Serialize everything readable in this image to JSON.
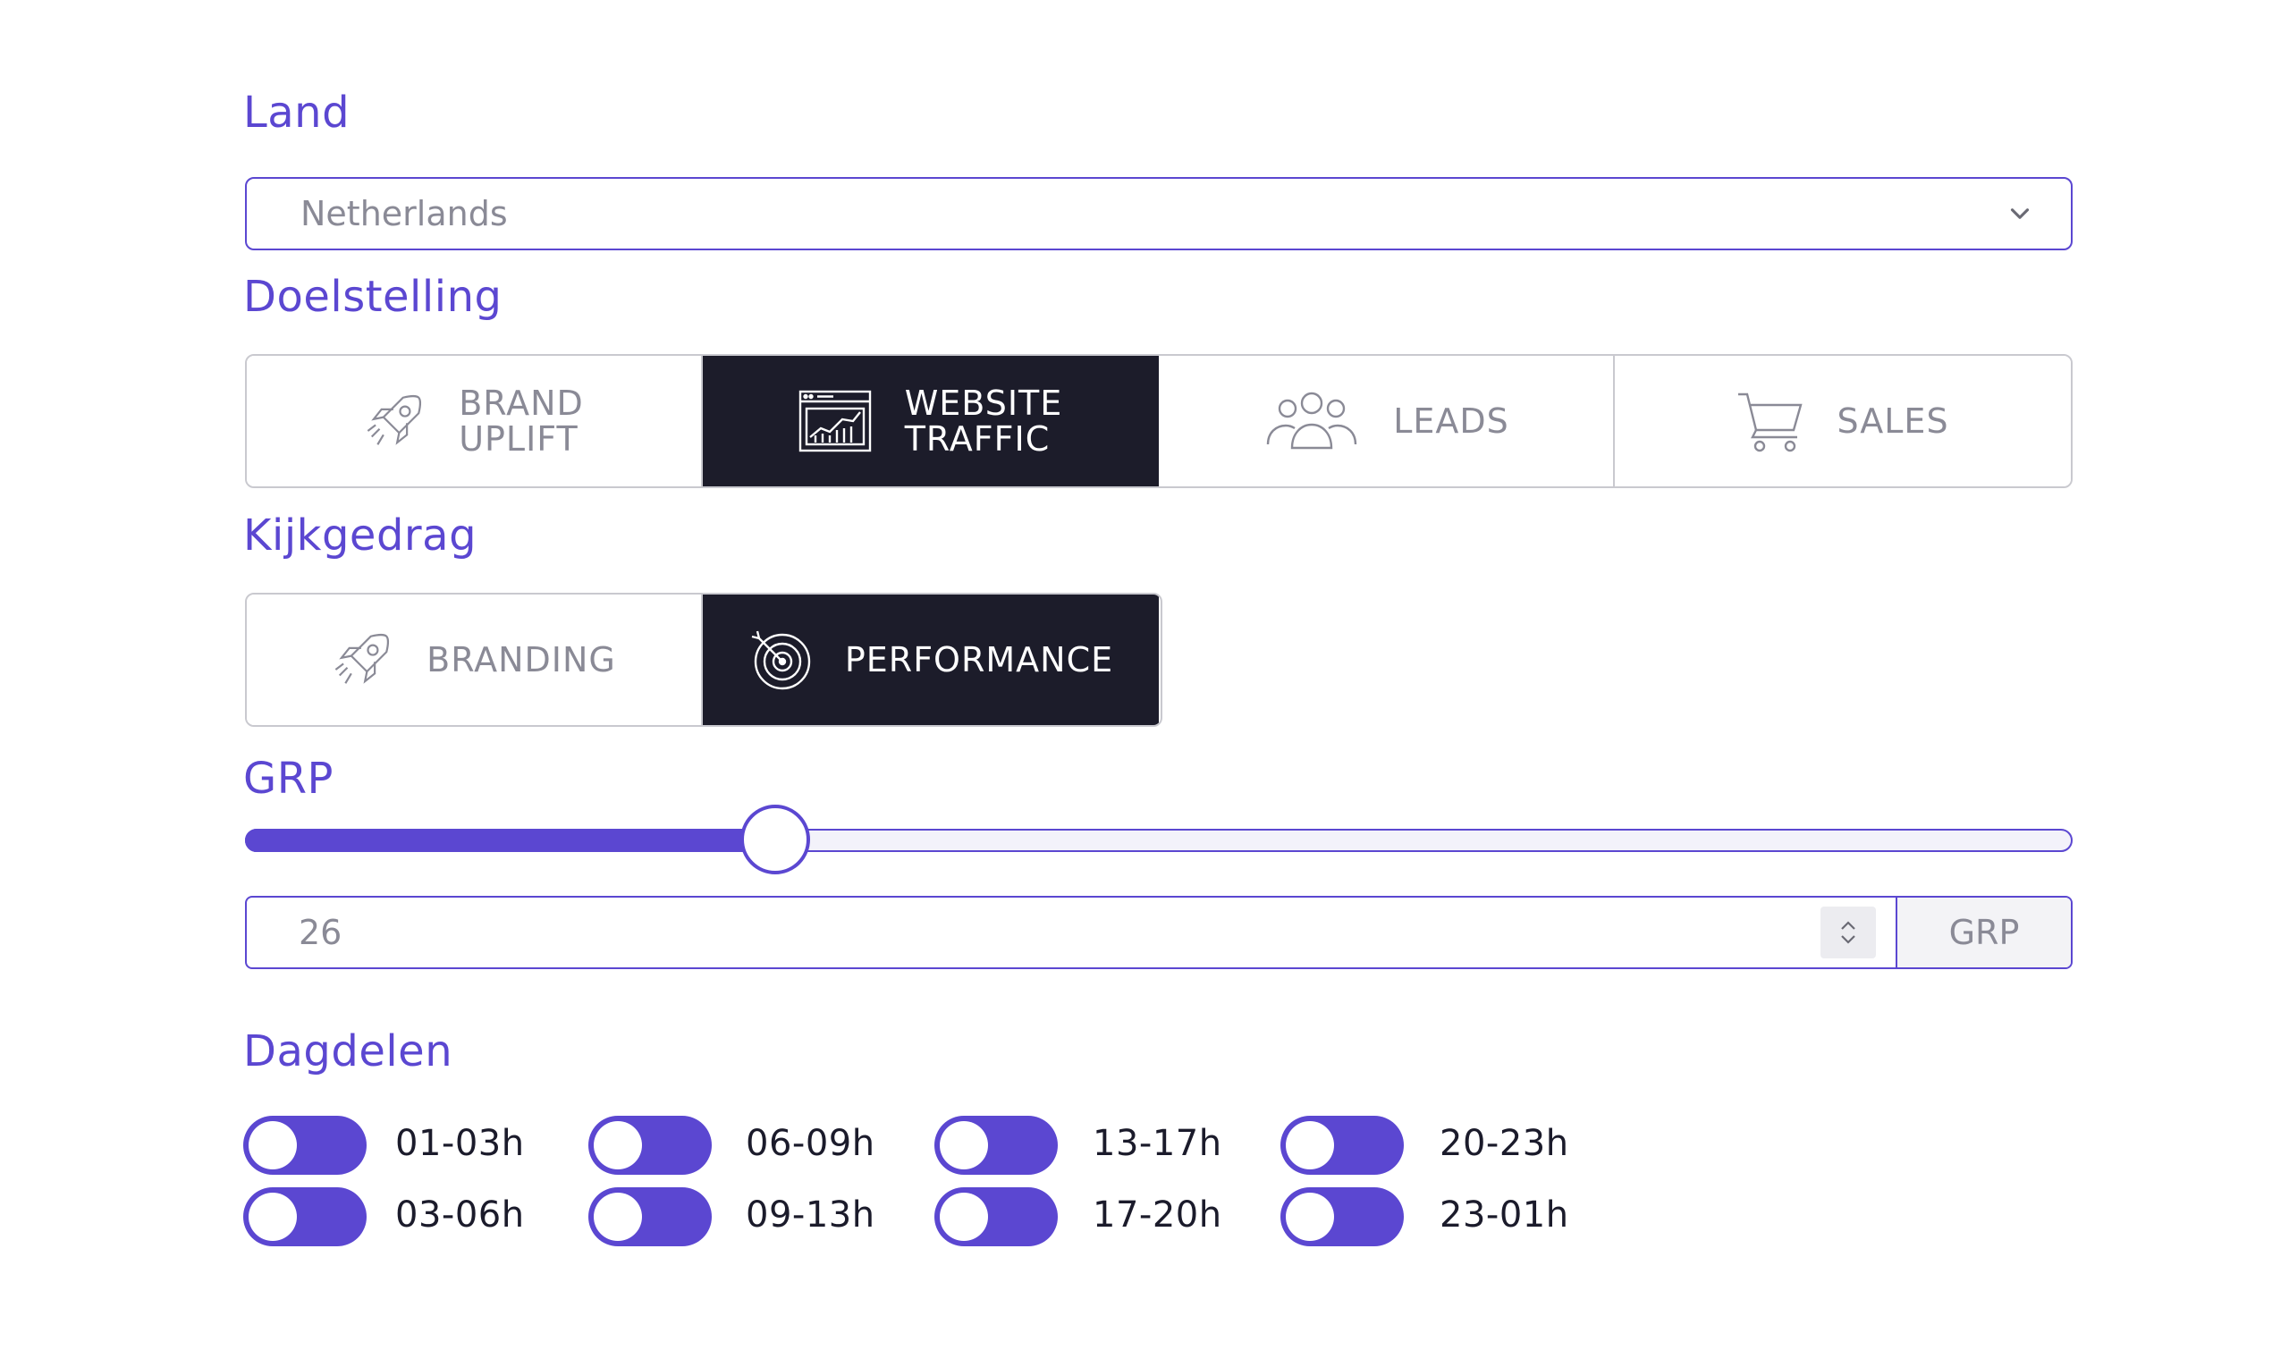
{
  "land": {
    "label": "Land",
    "selected": "Netherlands",
    "chevron_icon": "chevron-down-icon"
  },
  "doelstelling": {
    "label": "Doelstelling",
    "options": [
      {
        "label": "BRAND\nUPLIFT",
        "icon": "rocket-icon",
        "active": false
      },
      {
        "label": "WEBSITE\nTRAFFIC",
        "icon": "chart-browser-icon",
        "active": true
      },
      {
        "label": "LEADS",
        "icon": "people-group-icon",
        "active": false
      },
      {
        "label": "SALES",
        "icon": "shopping-cart-icon",
        "active": false
      }
    ]
  },
  "kijkgedrag": {
    "label": "Kijkgedrag",
    "options": [
      {
        "label": "BRANDING",
        "icon": "rocket-icon",
        "active": false
      },
      {
        "label": "PERFORMANCE",
        "icon": "target-icon",
        "active": true
      }
    ]
  },
  "grp": {
    "label": "GRP",
    "slider_fraction": 0.29,
    "value": "26",
    "unit": "GRP"
  },
  "dagdelen": {
    "label": "Dagdelen",
    "slots": [
      {
        "label": "01-03h",
        "on": true
      },
      {
        "label": "03-06h",
        "on": true
      },
      {
        "label": "06-09h",
        "on": true
      },
      {
        "label": "09-13h",
        "on": true
      },
      {
        "label": "13-17h",
        "on": true
      },
      {
        "label": "17-20h",
        "on": true
      },
      {
        "label": "20-23h",
        "on": true
      },
      {
        "label": "23-01h",
        "on": true
      }
    ]
  },
  "colors": {
    "accent": "#5b47d1",
    "active_bg": "#1c1c2a",
    "muted_text": "#8a8a96"
  }
}
